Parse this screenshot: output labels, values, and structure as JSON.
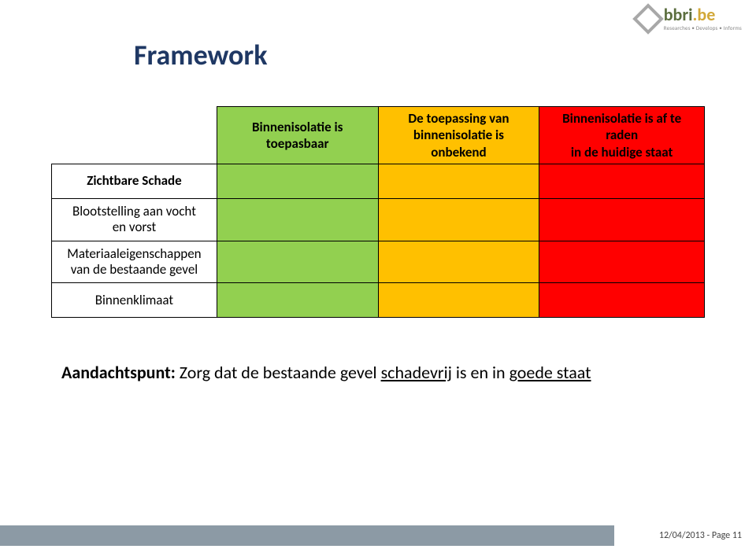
{
  "logo": {
    "name": "bbri",
    "dot": ".be",
    "tagline": "Researches • Develops • Informs"
  },
  "title": "Framework",
  "table": {
    "columns": [
      {
        "line1": "Binnenisolatie is",
        "line2": "toepasbaar",
        "color": "#92d050"
      },
      {
        "line1": "De toepassing van",
        "line2": "binnenisolatie is onbekend",
        "color": "#ffc000"
      },
      {
        "line1": "Binnenisolatie is af te raden",
        "line2": "in de huidige staat",
        "color": "#ff0000"
      }
    ],
    "rows": [
      {
        "label": "Zichtbare Schade",
        "bold": true
      },
      {
        "label": "Blootstelling aan vocht\nen vorst",
        "bold": false
      },
      {
        "label": "Materiaaleigenschappen\nvan de bestaande gevel",
        "bold": false
      },
      {
        "label": "Binnenklimaat",
        "bold": false
      }
    ]
  },
  "note": {
    "label": "Aandachtspunt:",
    "pre": " Zorg dat de bestaande gevel ",
    "ul1": "schadevrij",
    "mid": " is en in ",
    "ul2": "goede staat"
  },
  "footer": {
    "date": "12/04/2013",
    "page": "Page 11"
  }
}
